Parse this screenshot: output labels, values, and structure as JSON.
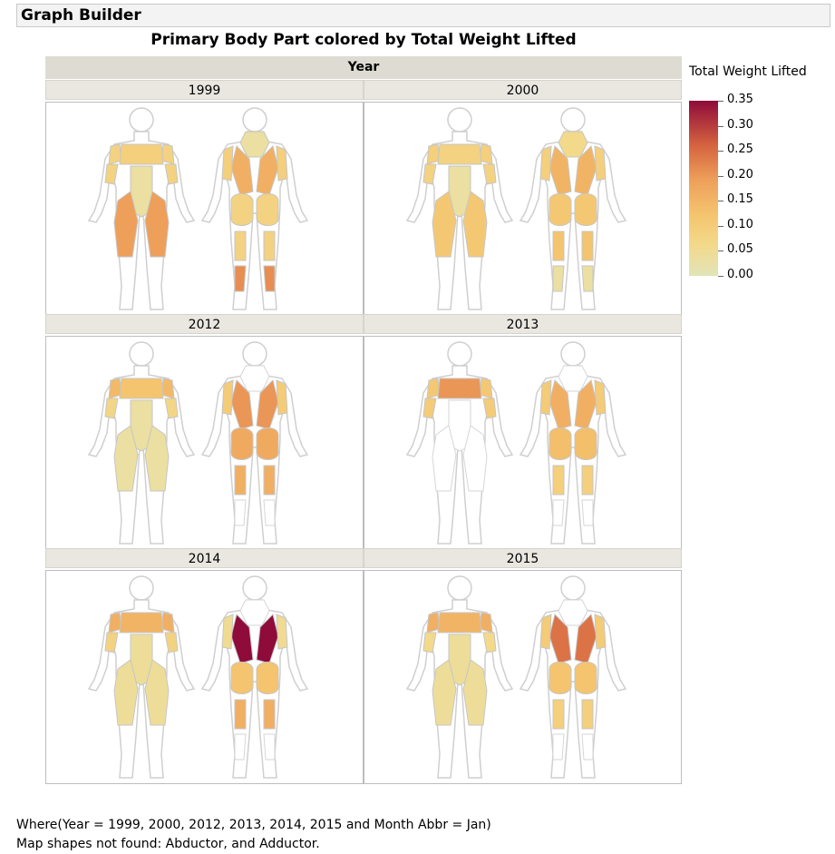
{
  "window": {
    "title": "Graph Builder"
  },
  "chart_data": {
    "type": "heatmap",
    "title": "Primary Body Part colored by Total Weight Lifted",
    "facet_label": "Year",
    "color_legend": {
      "title": "Total Weight Lifted",
      "range": [
        0.0,
        0.35
      ],
      "ticks": [
        "0.35",
        "0.30",
        "0.25",
        "0.20",
        "0.15",
        "0.10",
        "0.05",
        "0.00"
      ],
      "colors": [
        "#e2e4b8",
        "#f3d98a",
        "#f4c46e",
        "#ee9f5a",
        "#d4623f",
        "#8e0b3a"
      ]
    },
    "panels": [
      {
        "year": "1999",
        "values": {
          "shoulders": 0.08,
          "chest": 0.09,
          "abs": 0.03,
          "biceps": 0.08,
          "quads": 0.19,
          "traps": 0.03,
          "lats": 0.16,
          "triceps": 0.09,
          "glutes": 0.08,
          "hamstrings": 0.08,
          "calves": 0.21
        }
      },
      {
        "year": "2000",
        "values": {
          "shoulders": 0.09,
          "chest": 0.08,
          "abs": 0.03,
          "biceps": 0.08,
          "quads": 0.11,
          "traps": 0.06,
          "lats": 0.15,
          "triceps": 0.09,
          "glutes": 0.11,
          "hamstrings": 0.12,
          "calves": 0.03
        }
      },
      {
        "year": "2012",
        "values": {
          "shoulders": 0.14,
          "chest": 0.12,
          "abs": 0.03,
          "biceps": 0.07,
          "quads": 0.03,
          "traps": 0.0,
          "lats": 0.2,
          "triceps": 0.1,
          "glutes": 0.17,
          "hamstrings": 0.16,
          "calves": 0.0
        }
      },
      {
        "year": "2013",
        "values": {
          "shoulders": 0.11,
          "chest": 0.2,
          "abs": 0.0,
          "biceps": 0.1,
          "quads": 0.0,
          "traps": 0.0,
          "lats": 0.16,
          "triceps": 0.1,
          "glutes": 0.13,
          "hamstrings": 0.09,
          "calves": 0.0
        }
      },
      {
        "year": "2014",
        "values": {
          "shoulders": 0.16,
          "chest": 0.15,
          "abs": 0.04,
          "biceps": 0.08,
          "quads": 0.04,
          "traps": 0.0,
          "lats": 0.35,
          "triceps": 0.05,
          "glutes": 0.12,
          "hamstrings": 0.16,
          "calves": 0.0
        }
      },
      {
        "year": "2015",
        "values": {
          "shoulders": 0.16,
          "chest": 0.15,
          "abs": 0.04,
          "biceps": 0.06,
          "quads": 0.04,
          "traps": 0.0,
          "lats": 0.24,
          "triceps": 0.1,
          "glutes": 0.12,
          "hamstrings": 0.09,
          "calves": 0.0
        }
      }
    ]
  },
  "footer": {
    "where": "Where(Year = 1999, 2000, 2012, 2013, 2014, 2015 and Month Abbr = Jan)",
    "missing": "Map shapes not found: Abductor, and Adductor."
  }
}
